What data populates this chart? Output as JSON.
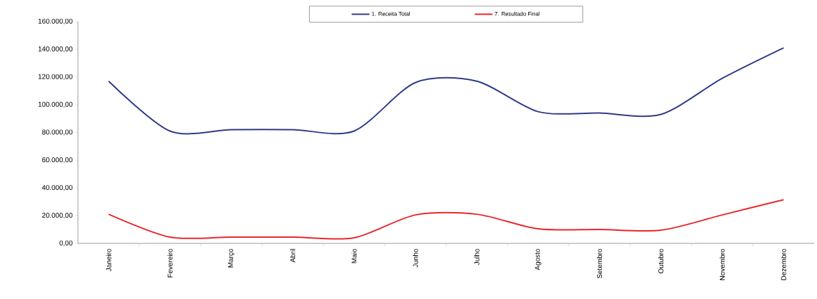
{
  "chart_data": {
    "type": "line",
    "categories": [
      "Janeiro",
      "Fevereiro",
      "Março",
      "Abril",
      "Maio",
      "Junho",
      "Julho",
      "Agosto",
      "Setembro",
      "Outubro",
      "Novembro",
      "Dezembro"
    ],
    "series": [
      {
        "name": "1. Receita Total",
        "color": "#2e3a87",
        "values": [
          117000,
          81000,
          82000,
          82000,
          81000,
          116000,
          117000,
          95000,
          94000,
          93000,
          119000,
          141000
        ]
      },
      {
        "name": "7. Resultado Final",
        "color": "#e8262a",
        "values": [
          21000,
          4500,
          4500,
          4500,
          4000,
          20500,
          21000,
          10500,
          10000,
          9500,
          20500,
          31500
        ]
      }
    ],
    "ylim": [
      0,
      160000
    ],
    "yticks": [
      {
        "value": 0,
        "label": "0,00"
      },
      {
        "value": 20000,
        "label": "20.000,00"
      },
      {
        "value": 40000,
        "label": "40.000,00"
      },
      {
        "value": 60000,
        "label": "60.000,00"
      },
      {
        "value": 80000,
        "label": "80.000,00"
      },
      {
        "value": 100000,
        "label": "100.000,00"
      },
      {
        "value": 120000,
        "label": "120.000,00"
      },
      {
        "value": 140000,
        "label": "140.000,00"
      },
      {
        "value": 160000,
        "label": "160.000,00"
      }
    ],
    "grid": false,
    "legend": "top",
    "marker": "none",
    "line_style": "solid"
  }
}
